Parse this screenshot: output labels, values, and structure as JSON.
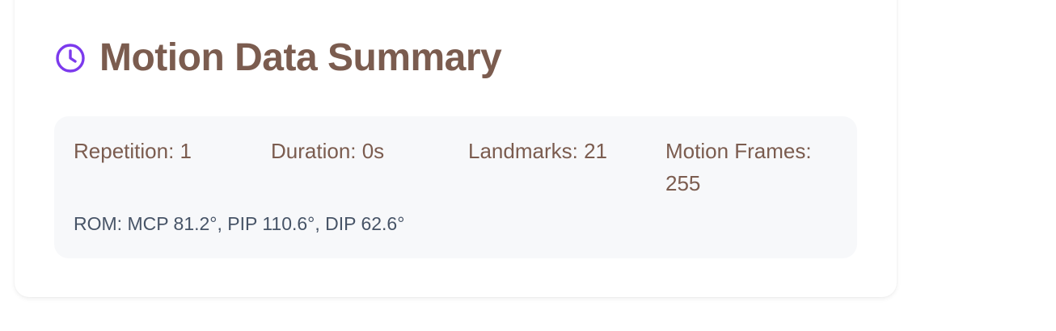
{
  "card": {
    "title": "Motion Data Summary",
    "icon": "clock-icon",
    "accent_color": "#7c3aed",
    "title_color": "#7b5c4f"
  },
  "summary": {
    "repetition": "Repetition: 1",
    "duration": "Duration: 0s",
    "landmarks": "Landmarks: 21",
    "motion_frames": "Motion Frames: 255",
    "rom": "ROM: MCP 81.2°, PIP 110.6°, DIP 62.6°"
  }
}
